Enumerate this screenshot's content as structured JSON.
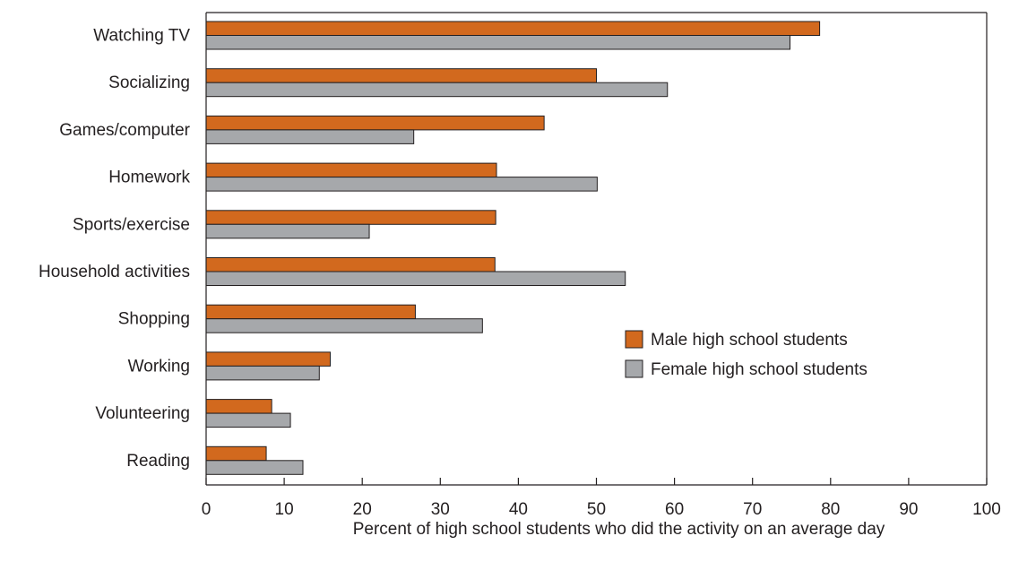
{
  "chart_data": {
    "type": "bar",
    "orientation": "horizontal",
    "categories": [
      "Watching TV",
      "Socializing",
      "Games/computer",
      "Homework",
      "Sports/exercise",
      "Household activities",
      "Shopping",
      "Working",
      "Volunteering",
      "Reading"
    ],
    "series": [
      {
        "name": "Male high school students",
        "color": "#d2691e",
        "values": [
          78.6,
          50.0,
          43.3,
          37.2,
          37.1,
          37.0,
          26.8,
          15.9,
          8.4,
          7.7
        ]
      },
      {
        "name": "Female high school students",
        "color": "#a6a8ab",
        "values": [
          74.8,
          59.1,
          26.6,
          50.1,
          20.9,
          53.7,
          35.4,
          14.5,
          10.8,
          12.4
        ]
      }
    ],
    "xlabel": "Percent of high school students who did the activity on an average day",
    "ylabel": "",
    "xlim": [
      0,
      100
    ],
    "xticks": [
      0,
      10,
      20,
      30,
      40,
      50,
      60,
      70,
      80,
      90,
      100
    ],
    "grid": false,
    "legend_position": "center-right"
  }
}
